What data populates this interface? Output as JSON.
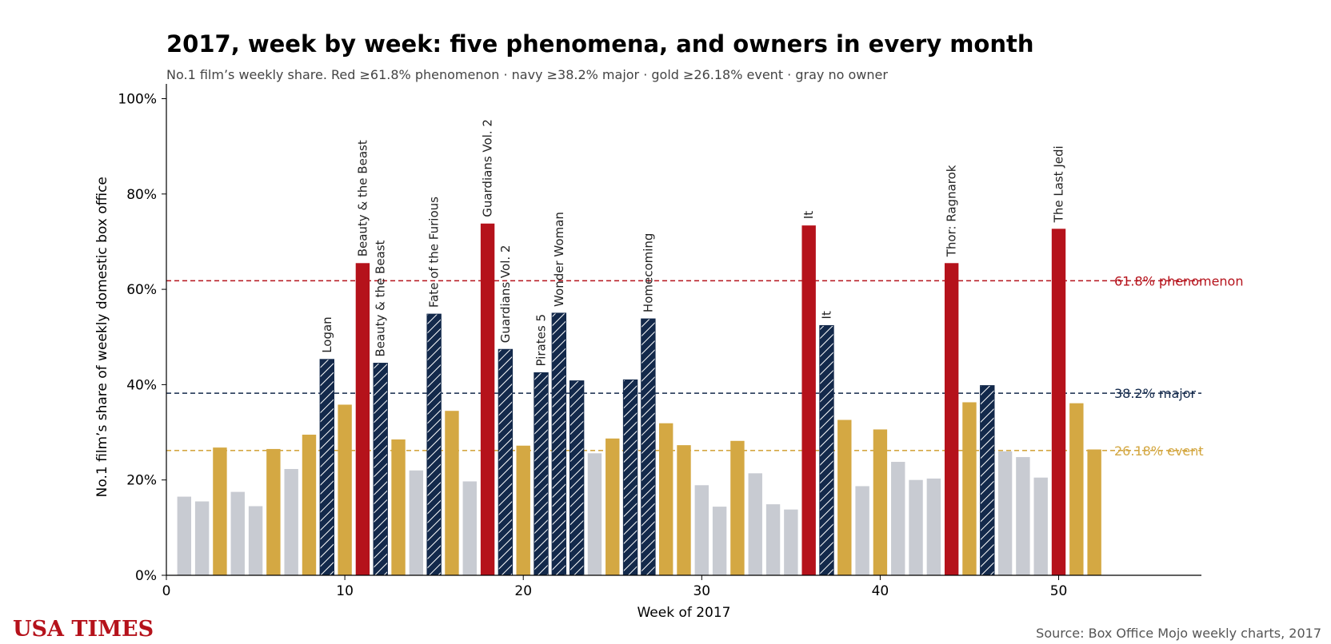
{
  "title": "2017, week by week: five phenomena, and owners in every month",
  "subtitle": "No.1 film’s weekly share. Red ≥61.8% phenomenon · navy ≥38.2% major · gold ≥26.18% event · gray no owner",
  "masthead": "USA TIMES",
  "source": "Source: Box Office Mojo weekly charts, 2017",
  "colors": {
    "phenomenon": "#b5121b",
    "major": "#13294b",
    "event": "#d4a843",
    "none": "#c8cbd2",
    "axis": "#000000"
  },
  "chart_data": {
    "type": "bar",
    "xlabel": "Week of 2017",
    "ylabel": "No.1 film’s share of weekly domestic box office",
    "xlim": [
      0,
      58
    ],
    "ylim": [
      0,
      100
    ],
    "xticks": [
      0,
      10,
      20,
      30,
      40,
      50
    ],
    "yticks": [
      0,
      20,
      40,
      60,
      80,
      100
    ],
    "ytick_labels": [
      "0%",
      "20%",
      "40%",
      "60%",
      "80%",
      "100%"
    ],
    "thresholds": [
      {
        "value": 61.8,
        "label": "61.8% phenomenon",
        "tier": "phenomenon"
      },
      {
        "value": 38.2,
        "label": "38.2% major",
        "tier": "major"
      },
      {
        "value": 26.18,
        "label": "26.18% event",
        "tier": "event"
      }
    ],
    "bars": [
      {
        "week": 1,
        "value": 16.5,
        "tier": "none",
        "label": ""
      },
      {
        "week": 2,
        "value": 15.5,
        "tier": "none",
        "label": ""
      },
      {
        "week": 3,
        "value": 26.8,
        "tier": "event",
        "label": ""
      },
      {
        "week": 4,
        "value": 17.5,
        "tier": "none",
        "label": ""
      },
      {
        "week": 5,
        "value": 14.5,
        "tier": "none",
        "label": ""
      },
      {
        "week": 6,
        "value": 26.5,
        "tier": "event",
        "label": ""
      },
      {
        "week": 7,
        "value": 22.3,
        "tier": "none",
        "label": ""
      },
      {
        "week": 8,
        "value": 29.5,
        "tier": "event",
        "label": ""
      },
      {
        "week": 9,
        "value": 45.3,
        "tier": "major",
        "label": "Logan"
      },
      {
        "week": 10,
        "value": 35.8,
        "tier": "event",
        "label": ""
      },
      {
        "week": 11,
        "value": 65.5,
        "tier": "phenomenon",
        "label": "Beauty & the Beast"
      },
      {
        "week": 12,
        "value": 44.5,
        "tier": "major",
        "label": "Beauty & the Beast"
      },
      {
        "week": 13,
        "value": 28.5,
        "tier": "event",
        "label": ""
      },
      {
        "week": 14,
        "value": 22.0,
        "tier": "none",
        "label": ""
      },
      {
        "week": 15,
        "value": 54.8,
        "tier": "major",
        "label": "Fate of the Furious"
      },
      {
        "week": 16,
        "value": 34.5,
        "tier": "event",
        "label": ""
      },
      {
        "week": 17,
        "value": 19.7,
        "tier": "none",
        "label": ""
      },
      {
        "week": 18,
        "value": 73.8,
        "tier": "phenomenon",
        "label": "Guardians Vol. 2"
      },
      {
        "week": 19,
        "value": 47.4,
        "tier": "major",
        "label": "Guardians Vol. 2"
      },
      {
        "week": 20,
        "value": 27.2,
        "tier": "event",
        "label": ""
      },
      {
        "week": 21,
        "value": 42.5,
        "tier": "major",
        "label": "Pirates 5"
      },
      {
        "week": 22,
        "value": 55.0,
        "tier": "major",
        "label": "Wonder Woman"
      },
      {
        "week": 23,
        "value": 40.8,
        "tier": "major",
        "label": ""
      },
      {
        "week": 24,
        "value": 25.6,
        "tier": "none",
        "label": ""
      },
      {
        "week": 25,
        "value": 28.7,
        "tier": "event",
        "label": ""
      },
      {
        "week": 26,
        "value": 41.0,
        "tier": "major",
        "label": ""
      },
      {
        "week": 27,
        "value": 53.8,
        "tier": "major",
        "label": "Homecoming"
      },
      {
        "week": 28,
        "value": 31.9,
        "tier": "event",
        "label": ""
      },
      {
        "week": 29,
        "value": 27.3,
        "tier": "event",
        "label": ""
      },
      {
        "week": 30,
        "value": 18.9,
        "tier": "none",
        "label": ""
      },
      {
        "week": 31,
        "value": 14.4,
        "tier": "none",
        "label": ""
      },
      {
        "week": 32,
        "value": 28.2,
        "tier": "event",
        "label": ""
      },
      {
        "week": 33,
        "value": 21.4,
        "tier": "none",
        "label": ""
      },
      {
        "week": 34,
        "value": 14.9,
        "tier": "none",
        "label": ""
      },
      {
        "week": 35,
        "value": 13.8,
        "tier": "none",
        "label": ""
      },
      {
        "week": 36,
        "value": 73.4,
        "tier": "phenomenon",
        "label": "It"
      },
      {
        "week": 37,
        "value": 52.4,
        "tier": "major",
        "label": "It"
      },
      {
        "week": 38,
        "value": 32.6,
        "tier": "event",
        "label": ""
      },
      {
        "week": 39,
        "value": 18.7,
        "tier": "none",
        "label": ""
      },
      {
        "week": 40,
        "value": 30.6,
        "tier": "event",
        "label": ""
      },
      {
        "week": 41,
        "value": 23.8,
        "tier": "none",
        "label": ""
      },
      {
        "week": 42,
        "value": 20.0,
        "tier": "none",
        "label": ""
      },
      {
        "week": 43,
        "value": 20.3,
        "tier": "none",
        "label": ""
      },
      {
        "week": 44,
        "value": 65.5,
        "tier": "phenomenon",
        "label": "Thor: Ragnarok"
      },
      {
        "week": 45,
        "value": 36.3,
        "tier": "event",
        "label": ""
      },
      {
        "week": 46,
        "value": 39.8,
        "tier": "major",
        "label": ""
      },
      {
        "week": 47,
        "value": 26.0,
        "tier": "none",
        "label": ""
      },
      {
        "week": 48,
        "value": 24.8,
        "tier": "none",
        "label": ""
      },
      {
        "week": 49,
        "value": 20.5,
        "tier": "none",
        "label": ""
      },
      {
        "week": 50,
        "value": 72.7,
        "tier": "phenomenon",
        "label": "The Last Jedi"
      },
      {
        "week": 51,
        "value": 36.1,
        "tier": "event",
        "label": ""
      },
      {
        "week": 52,
        "value": 26.4,
        "tier": "event",
        "label": ""
      }
    ]
  }
}
